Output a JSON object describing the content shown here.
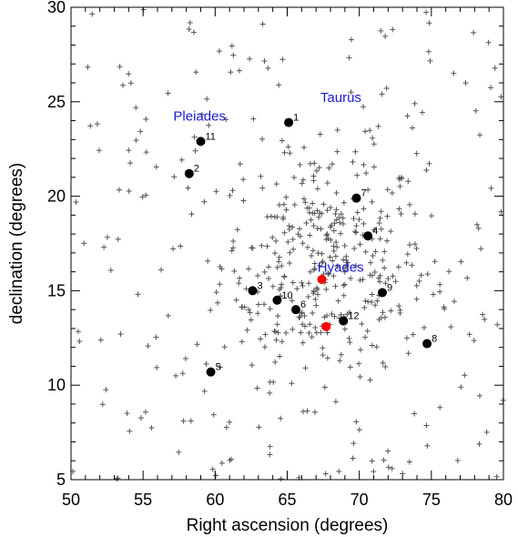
{
  "chart_data": {
    "type": "scatter",
    "xlabel": "Right ascension (degrees)",
    "ylabel": "declination (degrees)",
    "xlim": [
      50,
      80
    ],
    "ylim": [
      5,
      30
    ],
    "x_ticks": [
      "50",
      "55",
      "60",
      "65",
      "70",
      "75",
      "80"
    ],
    "y_ticks": [
      "5",
      "10",
      "15",
      "20",
      "25",
      "30"
    ],
    "grid": false,
    "colors": {
      "background_stars": "#555555",
      "labeled_stars": "#000000",
      "red_stars": "#ff0000",
      "annotations": "#1a1acc"
    },
    "annotations": [
      {
        "text": "Pleiades",
        "x": 57.1,
        "y": 24.0
      },
      {
        "text": "Taurus",
        "x": 67.3,
        "y": 25.0
      },
      {
        "text": "Hyades",
        "x": 67.1,
        "y": 16.0
      }
    ],
    "labeled_stars": [
      {
        "label": "1",
        "x": 65.1,
        "y": 23.9
      },
      {
        "label": "2",
        "x": 58.2,
        "y": 21.2
      },
      {
        "label": "3",
        "x": 62.6,
        "y": 15.0
      },
      {
        "label": "4",
        "x": 70.6,
        "y": 17.9
      },
      {
        "label": "5",
        "x": 59.7,
        "y": 10.7
      },
      {
        "label": "6",
        "x": 65.6,
        "y": 14.0
      },
      {
        "label": "7",
        "x": 69.8,
        "y": 19.9
      },
      {
        "label": "8",
        "x": 74.7,
        "y": 12.2
      },
      {
        "label": "9",
        "x": 71.6,
        "y": 14.9
      },
      {
        "label": "10",
        "x": 64.3,
        "y": 14.5
      },
      {
        "label": "11",
        "x": 59.0,
        "y": 22.9
      },
      {
        "label": "12",
        "x": 68.9,
        "y": 13.4
      }
    ],
    "red_stars": [
      {
        "x": 67.4,
        "y": 15.6
      },
      {
        "x": 67.7,
        "y": 13.1
      }
    ],
    "background_stars": {
      "count": 560,
      "center_x": 67.5,
      "center_y": 16.5,
      "description": "plus-shaped markers, dense cluster around Hyades spreading across full field"
    }
  }
}
